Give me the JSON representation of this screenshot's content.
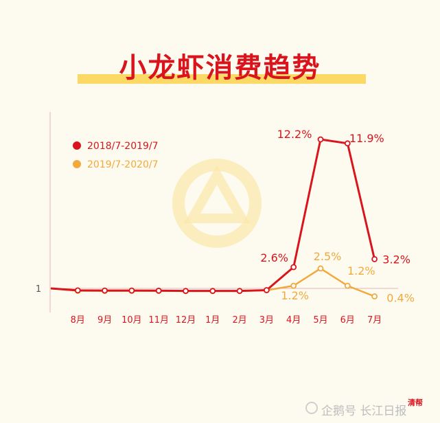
{
  "title": "小龙虾消费趋势",
  "footer": {
    "text": "企鹅号 长江日报",
    "stamp": "清帮"
  },
  "colors": {
    "series_a": "#d9141c",
    "series_b": "#f2a93b",
    "axis": "#e9b3b3",
    "label": "#d9141c"
  },
  "chart_data": {
    "type": "line",
    "categories": [
      "7月",
      "8月",
      "9月",
      "10月",
      "11月",
      "12月",
      "1月",
      "2月",
      "3月",
      "4月",
      "5月",
      "6月",
      "7月"
    ],
    "y_tick_labels": [
      {
        "value": 1,
        "label": "1"
      }
    ],
    "ylim": [
      0.6,
      13.5
    ],
    "legend_position": "top-left",
    "series": [
      {
        "name": "2018/7-2019/7",
        "values": [
          1.0,
          0.85,
          0.84,
          0.84,
          0.83,
          0.81,
          0.81,
          0.81,
          0.87,
          2.6,
          12.2,
          11.9,
          3.2
        ],
        "point_labels": [
          {
            "index": 9,
            "text": "2.6%"
          },
          {
            "index": 10,
            "text": "12.2%"
          },
          {
            "index": 11,
            "text": "11.9%"
          },
          {
            "index": 12,
            "text": "3.2%"
          }
        ]
      },
      {
        "name": "2019/7-2020/7",
        "values": [
          1.0,
          0.82,
          0.81,
          0.81,
          0.81,
          0.8,
          0.8,
          0.8,
          0.86,
          1.2,
          2.5,
          1.2,
          0.4
        ],
        "point_labels": [
          {
            "index": 9,
            "text": "1.2%"
          },
          {
            "index": 10,
            "text": "2.5%"
          },
          {
            "index": 11,
            "text": "1.2%"
          },
          {
            "index": 12,
            "text": "0.4%"
          }
        ]
      }
    ]
  }
}
